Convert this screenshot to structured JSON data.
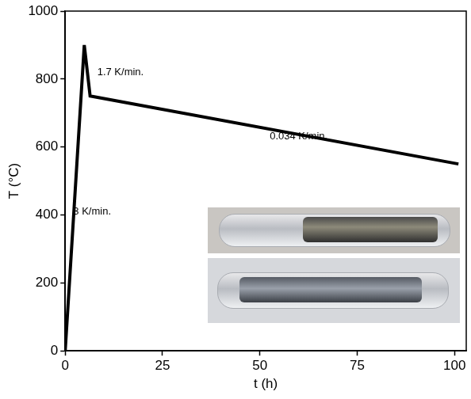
{
  "chart_data": {
    "type": "line",
    "x_label": "t (h)",
    "y_label": "T (°C)",
    "x": [
      0,
      4.9,
      6.4,
      101
    ],
    "values": [
      0,
      900,
      750,
      550
    ],
    "color": "#000000",
    "xlim": [
      0,
      103
    ],
    "xticks": [
      0,
      25,
      50,
      75,
      100
    ],
    "ylim": [
      0,
      1000
    ],
    "yticks": [
      0,
      200,
      400,
      600,
      800,
      1000
    ],
    "annotations": [
      "1.7 K/min.",
      "0.034 K/min.",
      "3 K/min."
    ],
    "grid": false
  }
}
